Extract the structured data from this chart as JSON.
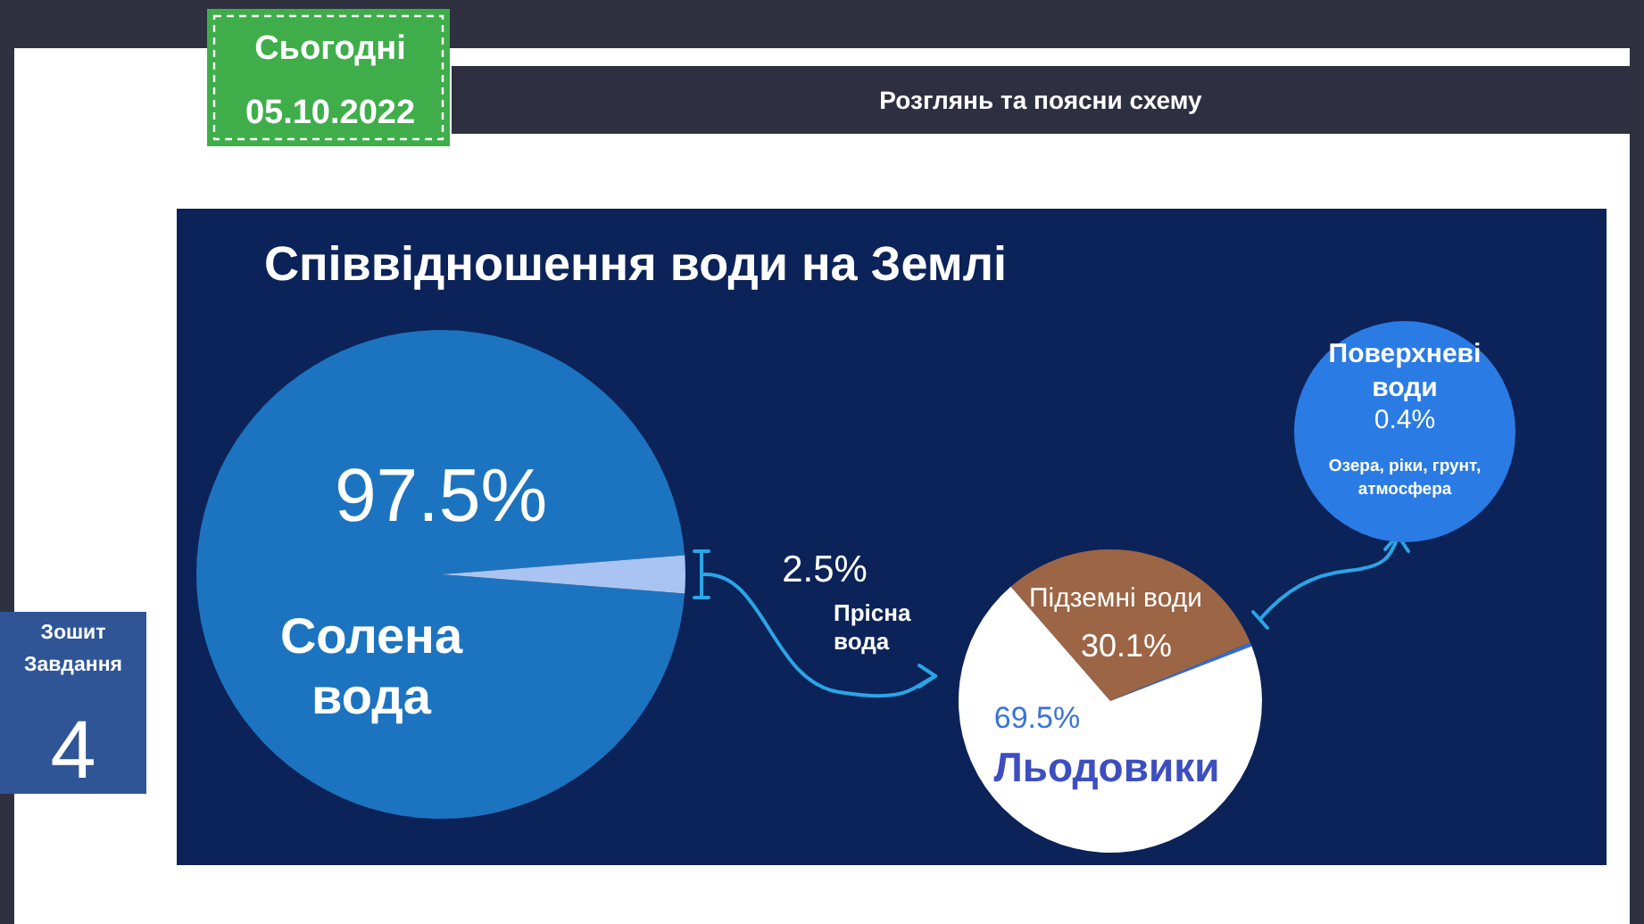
{
  "chart_data": [
    {
      "type": "pie",
      "title": "Співвідношення води на Землі",
      "categories": [
        "Солена вода",
        "Прісна вода"
      ],
      "values": [
        97.5,
        2.5
      ],
      "colors": [
        "#1c74c0",
        "#a9c4f2"
      ],
      "value_labels": [
        "97.5%",
        "2.5%"
      ],
      "annotations": [
        "Сьогодні",
        "05.10.2022",
        "Розглянь та поясни схему",
        "Зошит",
        "Завдання",
        "4"
      ]
    },
    {
      "type": "pie",
      "categories": [
        "Підземні води",
        null,
        "Льодовики"
      ],
      "values": [
        30.1,
        0.4,
        69.5
      ],
      "colors": [
        "#9c6545",
        "#2f6fd6",
        "#ffffff"
      ],
      "value_labels": [
        "30.1%",
        null,
        "69.5%"
      ]
    },
    {
      "type": "other",
      "title": "Поверхневі води",
      "color": "#2b7be4",
      "annotations": [
        "0.4%",
        "Озера, ріки, грунт, атмосфера"
      ]
    }
  ]
}
